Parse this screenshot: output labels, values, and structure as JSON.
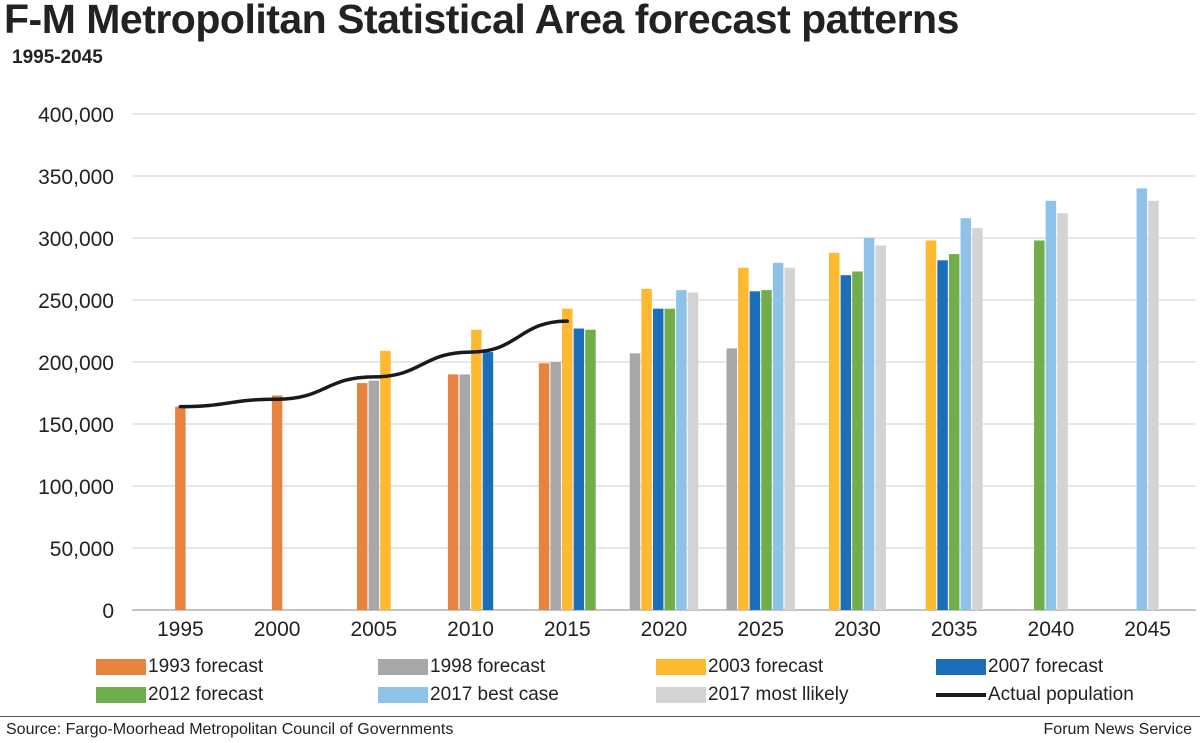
{
  "title": "F-M Metropolitan Statistical Area forecast patterns",
  "subtitle": "1995-2045",
  "source": "Source: Fargo-Moorhead Metropolitan Council of Governments",
  "credit": "Forum News Service",
  "chart_data": {
    "type": "bar",
    "title": "F-M Metropolitan Statistical Area forecast patterns",
    "subtitle": "1995-2045",
    "categories": [
      "1995",
      "2000",
      "2005",
      "2010",
      "2015",
      "2020",
      "2025",
      "2030",
      "2035",
      "2040",
      "2045"
    ],
    "ylim": [
      0,
      400000
    ],
    "yticks": [
      0,
      50000,
      100000,
      150000,
      200000,
      250000,
      300000,
      350000,
      400000
    ],
    "ytick_labels": [
      "0",
      "50,000",
      "100,000",
      "150,000",
      "200,000",
      "250,000",
      "300,000",
      "350,000",
      "400,000"
    ],
    "grid": true,
    "legend_position": "bottom",
    "series": [
      {
        "name": "1993 forecast",
        "color": "#E8833F",
        "values": [
          164000,
          173000,
          183000,
          190000,
          199000,
          null,
          null,
          null,
          null,
          null,
          null
        ]
      },
      {
        "name": "1998 forecast",
        "color": "#A8A6A9",
        "values": [
          null,
          null,
          185000,
          190000,
          200000,
          207000,
          211000,
          null,
          null,
          null,
          null
        ]
      },
      {
        "name": "2003 forecast",
        "color": "#FDB92F",
        "values": [
          null,
          null,
          209000,
          226000,
          243000,
          259000,
          276000,
          288000,
          298000,
          null,
          null
        ]
      },
      {
        "name": "2007 forecast",
        "color": "#1A6FB8",
        "values": [
          null,
          null,
          null,
          208000,
          227000,
          243000,
          257000,
          270000,
          282000,
          null,
          null
        ]
      },
      {
        "name": "2012 forecast",
        "color": "#72AD4C",
        "values": [
          null,
          null,
          null,
          null,
          226000,
          243000,
          258000,
          273000,
          287000,
          298000,
          null
        ]
      },
      {
        "name": "2017 best case",
        "color": "#8DC3E8",
        "values": [
          null,
          null,
          null,
          null,
          null,
          258000,
          280000,
          300000,
          316000,
          330000,
          340000
        ]
      },
      {
        "name": "2017 most llikely",
        "color": "#D3D3D3",
        "values": [
          null,
          null,
          null,
          null,
          null,
          256000,
          276000,
          294000,
          308000,
          320000,
          330000
        ]
      }
    ],
    "line": {
      "name": "Actual population",
      "color": "#1a1a1a",
      "x": [
        "1995",
        "2000",
        "2005",
        "2010",
        "2015"
      ],
      "values": [
        164000,
        170000,
        188000,
        208000,
        233000
      ]
    }
  },
  "legend": [
    {
      "label": "1993 forecast",
      "color": "#E8833F",
      "kind": "bar"
    },
    {
      "label": "1998 forecast",
      "color": "#A8A6A9",
      "kind": "bar"
    },
    {
      "label": "2003 forecast",
      "color": "#FDB92F",
      "kind": "bar"
    },
    {
      "label": "2007 forecast",
      "color": "#1A6FB8",
      "kind": "bar"
    },
    {
      "label": "2012 forecast",
      "color": "#72AD4C",
      "kind": "bar"
    },
    {
      "label": "2017 best case",
      "color": "#8DC3E8",
      "kind": "bar"
    },
    {
      "label": "2017 most llikely",
      "color": "#D3D3D3",
      "kind": "bar"
    },
    {
      "label": "Actual population",
      "color": "#1a1a1a",
      "kind": "line"
    }
  ]
}
